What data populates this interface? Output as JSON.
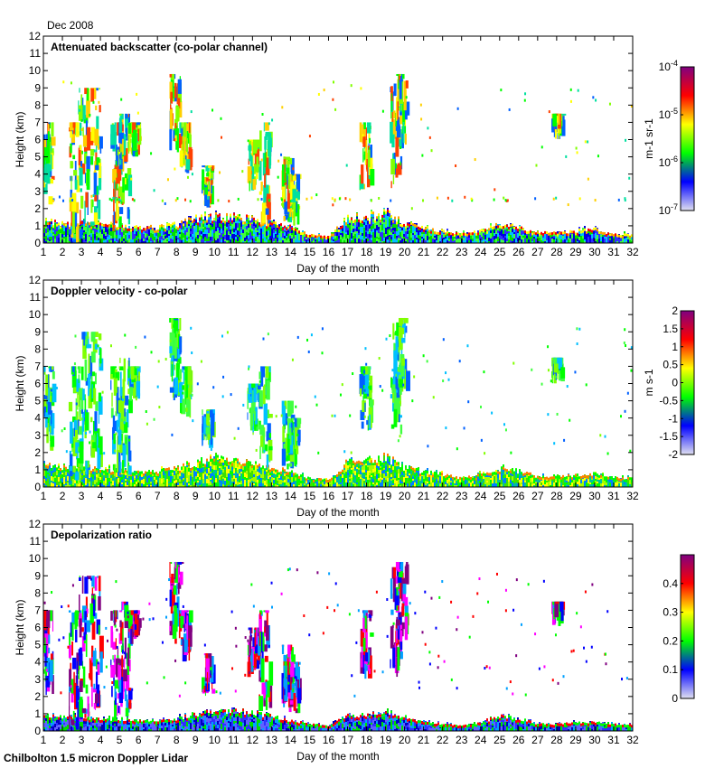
{
  "header": {
    "date_label": "Dec 2008"
  },
  "footer": {
    "instrument": "Chilbolton 1.5 micron Doppler Lidar"
  },
  "chart_data": [
    {
      "type": "heatmap",
      "title": "Attenuated backscatter (co-polar channel)",
      "xlabel": "Day of the month",
      "ylabel": "Height (km)",
      "xlim": [
        1,
        32
      ],
      "ylim": [
        0,
        12
      ],
      "xticks": [
        1,
        2,
        3,
        4,
        5,
        6,
        7,
        8,
        9,
        10,
        11,
        12,
        13,
        14,
        15,
        16,
        17,
        18,
        19,
        20,
        21,
        22,
        23,
        24,
        25,
        26,
        27,
        28,
        29,
        30,
        31,
        32
      ],
      "yticks": [
        0,
        1,
        2,
        3,
        4,
        5,
        6,
        7,
        8,
        9,
        10,
        11,
        12
      ],
      "colorbar": {
        "label": "m-1 sr-1",
        "scale": "log",
        "range": [
          1e-07,
          0.0001
        ],
        "ticks": [
          "10-7",
          "10-6",
          "10-5",
          "10-4"
        ],
        "colors": [
          "#e0e0f0",
          "#0000ff",
          "#00ff00",
          "#ffff00",
          "#ff0000",
          "#800080"
        ]
      },
      "boundary_layer_top_km": [
        1.2,
        1.0,
        1.0,
        1.0,
        0.9,
        0.8,
        0.8,
        1.0,
        1.3,
        1.5,
        1.4,
        1.3,
        1.0,
        0.8,
        0.4,
        0.3,
        1.4,
        1.4,
        1.6,
        1.0,
        0.8,
        0.6,
        0.4,
        0.6,
        1.0,
        0.8,
        0.5,
        0.5,
        0.6,
        0.7,
        0.4
      ],
      "cloud_columns": [
        [
          1.2,
          2,
          7
        ],
        [
          2.6,
          0,
          7
        ],
        [
          3.1,
          0.5,
          9
        ],
        [
          3.7,
          1,
          9
        ],
        [
          4.8,
          0.5,
          7
        ],
        [
          5.2,
          0.5,
          7.5
        ],
        [
          5.7,
          5,
          7
        ],
        [
          7.9,
          5,
          9.8
        ],
        [
          8.4,
          4,
          7
        ],
        [
          9.6,
          2,
          4.5
        ],
        [
          12,
          3,
          6
        ],
        [
          12.6,
          1,
          7
        ],
        [
          13.8,
          1,
          5
        ],
        [
          14.1,
          1,
          4
        ],
        [
          17.9,
          3,
          7
        ],
        [
          19.5,
          3,
          9.5
        ],
        [
          19.8,
          5,
          9.8
        ],
        [
          28,
          6,
          7.5
        ]
      ]
    },
    {
      "type": "heatmap",
      "title": "Doppler velocity - co-polar",
      "xlabel": "Day of the month",
      "ylabel": "Height (km)",
      "xlim": [
        1,
        32
      ],
      "ylim": [
        0,
        12
      ],
      "xticks": [
        1,
        2,
        3,
        4,
        5,
        6,
        7,
        8,
        9,
        10,
        11,
        12,
        13,
        14,
        15,
        16,
        17,
        18,
        19,
        20,
        21,
        22,
        23,
        24,
        25,
        26,
        27,
        28,
        29,
        30,
        31,
        32
      ],
      "yticks": [
        0,
        1,
        2,
        3,
        4,
        5,
        6,
        7,
        8,
        9,
        10,
        11,
        12
      ],
      "colorbar": {
        "label": "m s-1",
        "scale": "linear",
        "range": [
          -2,
          2
        ],
        "ticks": [
          "-2",
          "-1.5",
          "-1",
          "-0.5",
          "0",
          "0.5",
          "1",
          "1.5",
          "2"
        ],
        "colors": [
          "#e0e0f0",
          "#0000ff",
          "#00ff00",
          "#ffff00",
          "#ff0000",
          "#800080"
        ]
      },
      "boundary_layer_top_km": [
        1.2,
        1.0,
        1.0,
        1.0,
        0.9,
        0.8,
        0.8,
        1.0,
        1.3,
        1.5,
        1.4,
        1.3,
        1.0,
        0.8,
        0.4,
        0.3,
        1.4,
        1.4,
        1.6,
        1.0,
        0.8,
        0.6,
        0.4,
        0.6,
        1.0,
        0.8,
        0.5,
        0.5,
        0.6,
        0.7,
        0.4
      ],
      "cloud_columns": [
        [
          1.2,
          2,
          7
        ],
        [
          2.6,
          0,
          7
        ],
        [
          3.1,
          0.5,
          9
        ],
        [
          3.7,
          1,
          9
        ],
        [
          4.8,
          0.5,
          7
        ],
        [
          5.2,
          0.5,
          7.5
        ],
        [
          5.7,
          5,
          7
        ],
        [
          7.9,
          5,
          9.8
        ],
        [
          8.4,
          4,
          7
        ],
        [
          9.6,
          2,
          4.5
        ],
        [
          12,
          3,
          6
        ],
        [
          12.6,
          1,
          7
        ],
        [
          13.8,
          1,
          5
        ],
        [
          14.1,
          1,
          4
        ],
        [
          17.9,
          3,
          7
        ],
        [
          19.5,
          3,
          9.5
        ],
        [
          19.8,
          5,
          9.8
        ],
        [
          28,
          6,
          7.5
        ]
      ]
    },
    {
      "type": "heatmap",
      "title": "Depolarization ratio",
      "xlabel": "Day of the month",
      "ylabel": "Height (km)",
      "xlim": [
        1,
        32
      ],
      "ylim": [
        0,
        12
      ],
      "xticks": [
        1,
        2,
        3,
        4,
        5,
        6,
        7,
        8,
        9,
        10,
        11,
        12,
        13,
        14,
        15,
        16,
        17,
        18,
        19,
        20,
        21,
        22,
        23,
        24,
        25,
        26,
        27,
        28,
        29,
        30,
        31,
        32
      ],
      "yticks": [
        0,
        1,
        2,
        3,
        4,
        5,
        6,
        7,
        8,
        9,
        10,
        11,
        12
      ],
      "colorbar": {
        "label": "",
        "scale": "linear",
        "range": [
          0,
          0.5
        ],
        "ticks": [
          "0",
          "0.1",
          "0.2",
          "0.3",
          "0.4"
        ],
        "colors": [
          "#e0e0f0",
          "#0000ff",
          "#00ff00",
          "#ffff00",
          "#ff0000",
          "#800080"
        ]
      },
      "boundary_layer_top_km": [
        0.8,
        0.7,
        0.7,
        0.6,
        0.6,
        0.5,
        0.5,
        0.6,
        0.9,
        1.0,
        1.0,
        1.0,
        0.7,
        0.5,
        0.3,
        0.2,
        0.8,
        0.8,
        1.0,
        0.7,
        0.4,
        0.3,
        0.2,
        0.4,
        0.8,
        0.6,
        0.3,
        0.3,
        0.4,
        0.4,
        0.3
      ],
      "cloud_columns": [
        [
          1.2,
          2,
          7
        ],
        [
          2.6,
          0,
          7
        ],
        [
          3.1,
          0.5,
          9
        ],
        [
          3.7,
          1,
          9
        ],
        [
          4.8,
          0.5,
          7
        ],
        [
          5.2,
          0.5,
          7.5
        ],
        [
          5.7,
          5,
          7
        ],
        [
          7.9,
          5,
          9.8
        ],
        [
          8.4,
          4,
          7
        ],
        [
          9.6,
          2,
          4.5
        ],
        [
          12,
          3,
          6
        ],
        [
          12.6,
          1,
          7
        ],
        [
          13.8,
          1,
          5
        ],
        [
          14.1,
          1,
          4
        ],
        [
          17.9,
          3,
          7
        ],
        [
          19.5,
          3,
          9.5
        ],
        [
          19.8,
          5,
          9.8
        ],
        [
          28,
          6,
          7.5
        ]
      ]
    }
  ]
}
